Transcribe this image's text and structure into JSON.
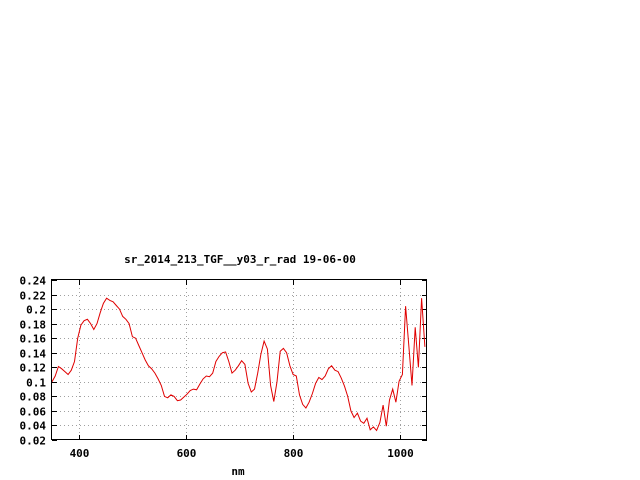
{
  "chart_data": {
    "type": "line",
    "title": "sr_2014_213_TGF__y03_r_rad 19-06-00",
    "xlabel": "nm",
    "ylabel": "",
    "xlim": [
      350,
      1050
    ],
    "ylim": [
      0.02,
      0.24
    ],
    "xticks": [
      400,
      600,
      800,
      1000
    ],
    "xtick_labels": [
      "400",
      "600",
      "800",
      "1000"
    ],
    "yticks": [
      0.02,
      0.04,
      0.06,
      0.08,
      0.1,
      0.12,
      0.14,
      0.16,
      0.18,
      0.2,
      0.22,
      0.24
    ],
    "ytick_labels": [
      "0.02",
      "0.04",
      "0.06",
      "0.08",
      "0.1",
      "0.12",
      "0.14",
      "0.16",
      "0.18",
      "0.2",
      "0.22",
      "0.24"
    ],
    "grid": true,
    "legend": "none",
    "series_color": "#e00000",
    "series": [
      {
        "x": [
          350,
          356,
          362,
          368,
          374,
          380,
          386,
          392,
          398,
          404,
          410,
          416,
          422,
          428,
          434,
          440,
          446,
          452,
          458,
          464,
          470,
          476,
          482,
          488,
          494,
          500,
          506,
          512,
          518,
          524,
          530,
          536,
          542,
          548,
          554,
          560,
          566,
          572,
          578,
          584,
          590,
          596,
          602,
          608,
          614,
          620,
          626,
          632,
          638,
          644,
          650,
          656,
          662,
          668,
          674,
          680,
          686,
          692,
          698,
          704,
          710,
          716,
          722,
          728,
          734,
          740,
          746,
          752,
          758,
          764,
          770,
          776,
          782,
          788,
          794,
          800,
          806,
          812,
          818,
          824,
          830,
          836,
          842,
          848,
          854,
          860,
          866,
          872,
          878,
          884,
          890,
          896,
          902,
          908,
          914,
          920,
          926,
          932,
          938,
          944,
          950,
          956,
          962,
          968,
          974,
          980,
          986,
          992,
          998,
          1004,
          1010,
          1016,
          1022,
          1028,
          1034,
          1040,
          1046
        ],
        "y": [
          0.1,
          0.108,
          0.121,
          0.118,
          0.114,
          0.11,
          0.116,
          0.128,
          0.16,
          0.178,
          0.184,
          0.186,
          0.18,
          0.172,
          0.18,
          0.195,
          0.208,
          0.215,
          0.212,
          0.21,
          0.205,
          0.2,
          0.19,
          0.186,
          0.18,
          0.162,
          0.16,
          0.15,
          0.14,
          0.13,
          0.122,
          0.118,
          0.112,
          0.104,
          0.095,
          0.08,
          0.078,
          0.082,
          0.08,
          0.074,
          0.075,
          0.079,
          0.083,
          0.088,
          0.09,
          0.089,
          0.097,
          0.104,
          0.108,
          0.107,
          0.112,
          0.128,
          0.135,
          0.14,
          0.141,
          0.128,
          0.112,
          0.116,
          0.122,
          0.129,
          0.124,
          0.098,
          0.086,
          0.09,
          0.112,
          0.138,
          0.156,
          0.145,
          0.095,
          0.073,
          0.1,
          0.142,
          0.146,
          0.14,
          0.122,
          0.11,
          0.108,
          0.082,
          0.069,
          0.064,
          0.072,
          0.084,
          0.098,
          0.106,
          0.103,
          0.108,
          0.118,
          0.122,
          0.116,
          0.114,
          0.105,
          0.094,
          0.08,
          0.06,
          0.051,
          0.057,
          0.046,
          0.043,
          0.05,
          0.034,
          0.038,
          0.033,
          0.044,
          0.068,
          0.039,
          0.075,
          0.09,
          0.072,
          0.101,
          0.11,
          0.204,
          0.15,
          0.095,
          0.175,
          0.12,
          0.215,
          0.148
        ]
      }
    ]
  }
}
